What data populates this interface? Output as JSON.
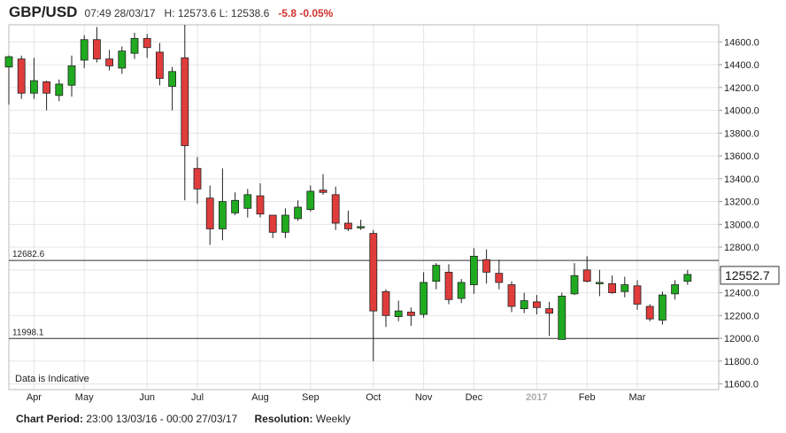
{
  "header": {
    "symbol": "GBP/USD",
    "time": "07:49 28/03/17",
    "hl": "H: 12573.6 L: 12538.6",
    "change": "-5.8 -0.05%"
  },
  "footer": {
    "period_label": "Chart Period:",
    "period_value": "23:00 13/03/16 - 00:00 27/03/17",
    "resolution_label": "Resolution:",
    "resolution_value": "Weekly"
  },
  "chart_data": {
    "type": "candlestick",
    "ylim": [
      11550,
      14750
    ],
    "yticks": [
      11600,
      11800,
      12000,
      12200,
      12400,
      12600,
      12800,
      13000,
      13200,
      13400,
      13600,
      13800,
      14000,
      14200,
      14400,
      14600
    ],
    "ytick_labels": [
      "11600.0",
      "11800.0",
      "12000.0",
      "12200.0",
      "12400.0",
      "12600.0",
      "12800.0",
      "13000.0",
      "13200.0",
      "13400.0",
      "13600.0",
      "13800.0",
      "14000.0",
      "14200.0",
      "14400.0",
      "14600.0"
    ],
    "x_labels": [
      {
        "label": "Apr",
        "i": 2
      },
      {
        "label": "May",
        "i": 6
      },
      {
        "label": "Jun",
        "i": 11
      },
      {
        "label": "Jul",
        "i": 15
      },
      {
        "label": "Aug",
        "i": 20
      },
      {
        "label": "Sep",
        "i": 24
      },
      {
        "label": "Oct",
        "i": 29
      },
      {
        "label": "Nov",
        "i": 33
      },
      {
        "label": "Dec",
        "i": 37
      },
      {
        "label": "2017",
        "i": 42,
        "muted": true
      },
      {
        "label": "Feb",
        "i": 46
      },
      {
        "label": "Mar",
        "i": 50
      }
    ],
    "ref_lines": [
      {
        "label": "12682.6",
        "value": 12682.6
      },
      {
        "label": "11998.1",
        "value": 11998.1
      }
    ],
    "last_price": {
      "label": "12552.7",
      "value": 12552.7
    },
    "annotation": "Data is Indicative",
    "colors": {
      "up": "#1faa1f",
      "down": "#e03c3c",
      "wick": "#222222",
      "grid": "#e5e5e5",
      "ref": "#333333"
    },
    "candles": [
      {
        "o": 14380,
        "h": 14480,
        "l": 14050,
        "c": 14470
      },
      {
        "o": 14450,
        "h": 14480,
        "l": 14100,
        "c": 14150
      },
      {
        "o": 14150,
        "h": 14460,
        "l": 14100,
        "c": 14260
      },
      {
        "o": 14250,
        "h": 14260,
        "l": 14000,
        "c": 14150
      },
      {
        "o": 14130,
        "h": 14270,
        "l": 14080,
        "c": 14230
      },
      {
        "o": 14220,
        "h": 14480,
        "l": 14120,
        "c": 14390
      },
      {
        "o": 14440,
        "h": 14660,
        "l": 14370,
        "c": 14620
      },
      {
        "o": 14620,
        "h": 14730,
        "l": 14420,
        "c": 14450
      },
      {
        "o": 14450,
        "h": 14530,
        "l": 14350,
        "c": 14390
      },
      {
        "o": 14370,
        "h": 14560,
        "l": 14320,
        "c": 14520
      },
      {
        "o": 14500,
        "h": 14680,
        "l": 14450,
        "c": 14630
      },
      {
        "o": 14630,
        "h": 14670,
        "l": 14460,
        "c": 14550
      },
      {
        "o": 14510,
        "h": 14590,
        "l": 14220,
        "c": 14280
      },
      {
        "o": 14210,
        "h": 14380,
        "l": 14000,
        "c": 14340
      },
      {
        "o": 14460,
        "h": 14750,
        "l": 13210,
        "c": 13690
      },
      {
        "o": 13490,
        "h": 13590,
        "l": 13180,
        "c": 13310
      },
      {
        "o": 13230,
        "h": 13340,
        "l": 12820,
        "c": 12960
      },
      {
        "o": 12960,
        "h": 13490,
        "l": 12860,
        "c": 13200
      },
      {
        "o": 13100,
        "h": 13280,
        "l": 13080,
        "c": 13210
      },
      {
        "o": 13140,
        "h": 13310,
        "l": 13060,
        "c": 13260
      },
      {
        "o": 13250,
        "h": 13360,
        "l": 13060,
        "c": 13090
      },
      {
        "o": 13080,
        "h": 13080,
        "l": 12880,
        "c": 12930
      },
      {
        "o": 12930,
        "h": 13140,
        "l": 12880,
        "c": 13080
      },
      {
        "o": 13050,
        "h": 13210,
        "l": 13030,
        "c": 13150
      },
      {
        "o": 13130,
        "h": 13340,
        "l": 13110,
        "c": 13290
      },
      {
        "o": 13300,
        "h": 13440,
        "l": 13260,
        "c": 13280
      },
      {
        "o": 13260,
        "h": 13330,
        "l": 12950,
        "c": 13010
      },
      {
        "o": 13010,
        "h": 13120,
        "l": 12940,
        "c": 12960
      },
      {
        "o": 12980,
        "h": 13040,
        "l": 12950,
        "c": 12980
      },
      {
        "o": 12920,
        "h": 12950,
        "l": 11800,
        "c": 12240
      },
      {
        "o": 12410,
        "h": 12430,
        "l": 12100,
        "c": 12200
      },
      {
        "o": 12190,
        "h": 12330,
        "l": 12150,
        "c": 12240
      },
      {
        "o": 12230,
        "h": 12270,
        "l": 12110,
        "c": 12200
      },
      {
        "o": 12210,
        "h": 12580,
        "l": 12180,
        "c": 12490
      },
      {
        "o": 12500,
        "h": 12660,
        "l": 12430,
        "c": 12640
      },
      {
        "o": 12580,
        "h": 12650,
        "l": 12300,
        "c": 12340
      },
      {
        "o": 12350,
        "h": 12520,
        "l": 12310,
        "c": 12490
      },
      {
        "o": 12470,
        "h": 12790,
        "l": 12390,
        "c": 12720
      },
      {
        "o": 12690,
        "h": 12780,
        "l": 12480,
        "c": 12580
      },
      {
        "o": 12570,
        "h": 12690,
        "l": 12430,
        "c": 12490
      },
      {
        "o": 12470,
        "h": 12500,
        "l": 12230,
        "c": 12280
      },
      {
        "o": 12260,
        "h": 12400,
        "l": 12220,
        "c": 12330
      },
      {
        "o": 12320,
        "h": 12380,
        "l": 12210,
        "c": 12270
      },
      {
        "o": 12260,
        "h": 12320,
        "l": 12020,
        "c": 12220
      },
      {
        "o": 11990,
        "h": 12400,
        "l": 11990,
        "c": 12370
      },
      {
        "o": 12390,
        "h": 12660,
        "l": 12380,
        "c": 12550
      },
      {
        "o": 12600,
        "h": 12720,
        "l": 12490,
        "c": 12500
      },
      {
        "o": 12490,
        "h": 12600,
        "l": 12370,
        "c": 12490
      },
      {
        "o": 12480,
        "h": 12550,
        "l": 12390,
        "c": 12400
      },
      {
        "o": 12410,
        "h": 12540,
        "l": 12360,
        "c": 12470
      },
      {
        "o": 12460,
        "h": 12510,
        "l": 12250,
        "c": 12300
      },
      {
        "o": 12280,
        "h": 12300,
        "l": 12150,
        "c": 12170
      },
      {
        "o": 12160,
        "h": 12410,
        "l": 12120,
        "c": 12380
      },
      {
        "o": 12390,
        "h": 12510,
        "l": 12340,
        "c": 12470
      },
      {
        "o": 12500,
        "h": 12600,
        "l": 12470,
        "c": 12560
      }
    ]
  }
}
